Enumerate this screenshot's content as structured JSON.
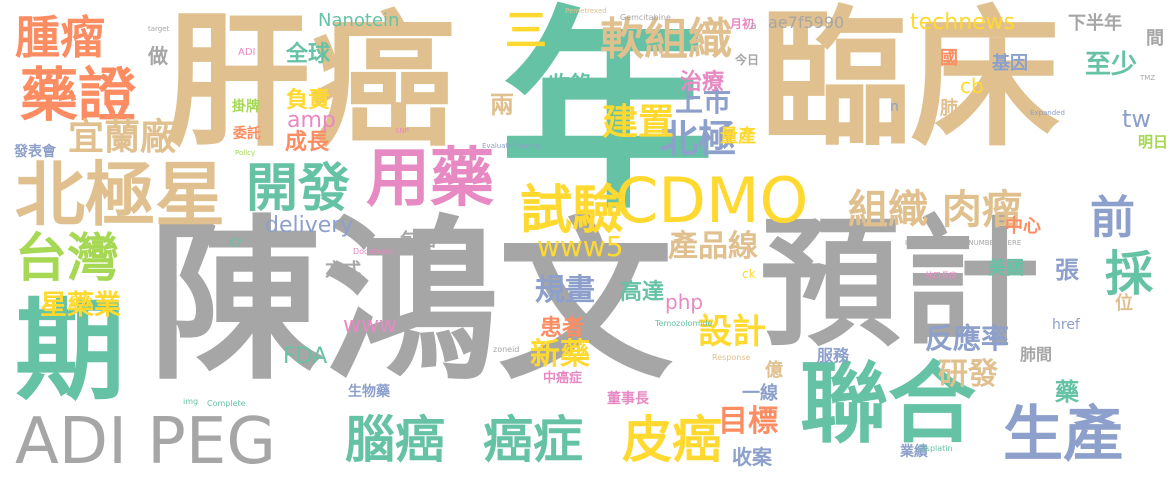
{
  "words": [
    {
      "text": "年",
      "color": "teal"
    },
    {
      "text": "陳鴻文",
      "color": "grey"
    },
    {
      "text": "預計",
      "color": "grey"
    },
    {
      "text": "臨床",
      "color": "tan"
    },
    {
      "text": "肝癌",
      "color": "tan"
    },
    {
      "text": "北極星",
      "color": "tan"
    },
    {
      "text": "期",
      "color": "teal"
    },
    {
      "text": "聯合",
      "color": "teal"
    },
    {
      "text": "ADI PEG",
      "color": "grey"
    },
    {
      "text": "CDMO",
      "color": "gold"
    },
    {
      "text": "腫瘤",
      "color": "orange"
    },
    {
      "text": "藥證",
      "color": "orange"
    },
    {
      "text": "台灣",
      "color": "lime"
    },
    {
      "text": "用藥",
      "color": "pink"
    },
    {
      "text": "開發",
      "color": "teal"
    },
    {
      "text": "試驗",
      "color": "gold"
    },
    {
      "text": "軟組織",
      "color": "tan"
    },
    {
      "text": "腦癌",
      "color": "teal"
    },
    {
      "text": "癌症",
      "color": "teal"
    },
    {
      "text": "皮癌",
      "color": "gold"
    },
    {
      "text": "生產",
      "color": "blue"
    },
    {
      "text": "組織 肉瘤",
      "color": "tan"
    },
    {
      "text": "technews",
      "color": "gold"
    },
    {
      "text": "前",
      "color": "blue"
    },
    {
      "text": "採",
      "color": "teal"
    },
    {
      "text": "北極",
      "color": "blue"
    },
    {
      "text": "上市",
      "color": "blue"
    },
    {
      "text": "建置",
      "color": "gold"
    },
    {
      "text": "宜蘭廠",
      "color": "tan"
    },
    {
      "text": "星藥業",
      "color": "gold"
    },
    {
      "text": "設計",
      "color": "gold"
    },
    {
      "text": "新藥",
      "color": "gold"
    },
    {
      "text": "www5",
      "color": "gold"
    },
    {
      "text": "產品線",
      "color": "tan"
    },
    {
      "text": "規畫",
      "color": "blue"
    },
    {
      "text": "目標",
      "color": "orange"
    },
    {
      "text": "研發",
      "color": "tan"
    },
    {
      "text": "反應率",
      "color": "blue"
    },
    {
      "text": "收錄",
      "color": "teal"
    },
    {
      "text": "治療",
      "color": "pink"
    },
    {
      "text": "兩",
      "color": "tan"
    },
    {
      "text": "三",
      "color": "gold"
    },
    {
      "text": "全球",
      "color": "teal"
    },
    {
      "text": "負責",
      "color": "gold"
    },
    {
      "text": "成長",
      "color": "orange"
    },
    {
      "text": "amp",
      "color": "pink"
    },
    {
      "text": "delivery",
      "color": "blue"
    },
    {
      "text": "包括",
      "color": "grey"
    },
    {
      "text": "方式",
      "color": "grey"
    },
    {
      "text": "www",
      "color": "pink"
    },
    {
      "text": "FDA",
      "color": "teal"
    },
    {
      "text": "php",
      "color": "pink"
    },
    {
      "text": "高達",
      "color": "teal"
    },
    {
      "text": "患者",
      "color": "orange"
    },
    {
      "text": "收案",
      "color": "blue"
    },
    {
      "text": "一線",
      "color": "blue"
    },
    {
      "text": "億",
      "color": "tan"
    },
    {
      "text": "服務",
      "color": "blue"
    },
    {
      "text": "肺間",
      "color": "grey"
    },
    {
      "text": "中心",
      "color": "orange"
    },
    {
      "text": "美國",
      "color": "teal"
    },
    {
      "text": "張",
      "color": "blue"
    },
    {
      "text": "國",
      "color": "orange"
    },
    {
      "text": "基因",
      "color": "blue"
    },
    {
      "text": "cb",
      "color": "gold"
    },
    {
      "text": "至少",
      "color": "teal"
    },
    {
      "text": "tw",
      "color": "blue"
    },
    {
      "text": "肺",
      "color": "tan"
    },
    {
      "text": "量產",
      "color": "gold"
    },
    {
      "text": "下半年",
      "color": "grey"
    },
    {
      "text": "間",
      "color": "grey"
    },
    {
      "text": "明日",
      "color": "lime"
    },
    {
      "text": "Nanotein",
      "color": "teal"
    },
    {
      "text": "ae7f5990",
      "color": "grey"
    },
    {
      "text": "做",
      "color": "grey"
    },
    {
      "text": "發表會",
      "color": "blue"
    },
    {
      "text": "委託",
      "color": "orange"
    },
    {
      "text": "掛牌",
      "color": "lime"
    },
    {
      "text": "生物藥",
      "color": "blue"
    },
    {
      "text": "中癌症",
      "color": "pink"
    },
    {
      "text": "董事長",
      "color": "pink"
    },
    {
      "text": "業績",
      "color": "blue"
    },
    {
      "text": "藥",
      "color": "teal"
    },
    {
      "text": "位",
      "color": "tan"
    },
    {
      "text": "href",
      "color": "blue"
    },
    {
      "text": "ck",
      "color": "gold"
    },
    {
      "text": "今日",
      "color": "grey"
    },
    {
      "text": "月初",
      "color": "pink"
    },
    {
      "text": "KY",
      "color": "teal"
    },
    {
      "text": "Gemcitabine",
      "color": "grey"
    },
    {
      "text": "Pemetrexed",
      "color": "tan"
    },
    {
      "text": "Cisplatin",
      "color": "teal"
    },
    {
      "text": "Docetaxel",
      "color": "pink"
    },
    {
      "text": "Temozolomide",
      "color": "teal"
    },
    {
      "text": "EvaluatePharma",
      "color": "blue"
    },
    {
      "text": "INSERT_RANDOM_NUMBER_HERE",
      "color": "grey"
    },
    {
      "text": "Expanded",
      "color": "blue"
    },
    {
      "text": "Response",
      "color": "tan"
    },
    {
      "text": "Policy",
      "color": "lime"
    },
    {
      "text": "Complete",
      "color": "teal"
    },
    {
      "text": "ADI",
      "color": "pink"
    },
    {
      "text": "n",
      "color": "blue"
    },
    {
      "text": "a",
      "color": "grey"
    },
    {
      "text": "林口長庚",
      "color": "pink"
    },
    {
      "text": "zoneid",
      "color": "grey"
    },
    {
      "text": "SNP",
      "color": "pink"
    },
    {
      "text": "TMZ",
      "color": "grey"
    },
    {
      "text": "img",
      "color": "teal"
    },
    {
      "text": "target",
      "color": "grey"
    }
  ]
}
